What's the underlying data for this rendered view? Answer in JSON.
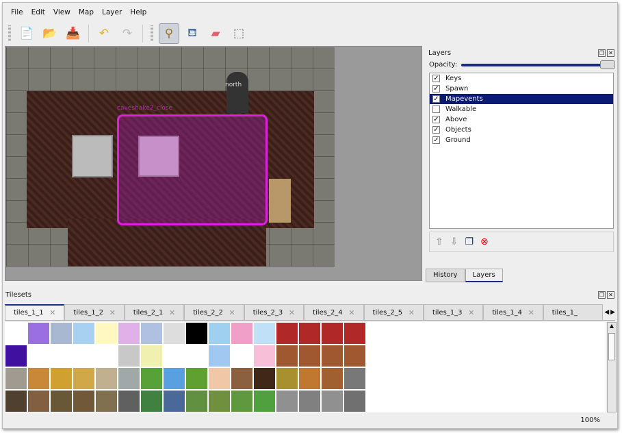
{
  "menu": [
    "File",
    "Edit",
    "View",
    "Map",
    "Layer",
    "Help"
  ],
  "toolbar": [
    {
      "name": "new-icon",
      "glyph": "📄"
    },
    {
      "name": "open-icon",
      "glyph": "📂"
    },
    {
      "name": "save-icon",
      "glyph": "📥"
    },
    {
      "name": "undo-icon",
      "glyph": "↶"
    },
    {
      "name": "redo-icon",
      "glyph": "↷"
    },
    {
      "name": "stamp-brush-icon",
      "glyph": "⚲",
      "active": true
    },
    {
      "name": "bucket-fill-icon",
      "glyph": "⛾"
    },
    {
      "name": "eraser-icon",
      "glyph": "▰"
    },
    {
      "name": "rect-select-icon",
      "glyph": "⬚"
    }
  ],
  "map": {
    "selected_object_label": "caveshake2_close",
    "object_label": "north"
  },
  "layers_panel": {
    "title": "Layers",
    "opacity_label": "Opacity:",
    "opacity": 1.0,
    "layers": [
      {
        "name": "Keys",
        "visible": true
      },
      {
        "name": "Spawn",
        "visible": true
      },
      {
        "name": "Mapevents",
        "visible": true,
        "selected": true
      },
      {
        "name": "Walkable",
        "visible": false
      },
      {
        "name": "Above",
        "visible": true
      },
      {
        "name": "Objects",
        "visible": true
      },
      {
        "name": "Ground",
        "visible": true
      }
    ],
    "tabs": [
      "History",
      "Layers"
    ],
    "active_tab": "Layers"
  },
  "tilesets_panel": {
    "title": "Tilesets",
    "tabs": [
      "tiles_1_1",
      "tiles_1_2",
      "tiles_2_1",
      "tiles_2_2",
      "tiles_2_3",
      "tiles_2_4",
      "tiles_2_5",
      "tiles_1_3",
      "tiles_1_4",
      "tiles_1_"
    ],
    "active_tab": "tiles_1_1"
  },
  "status": {
    "zoom": "100%"
  },
  "colors": {
    "accent": "#0b1a72",
    "selection": "#e020e0"
  }
}
